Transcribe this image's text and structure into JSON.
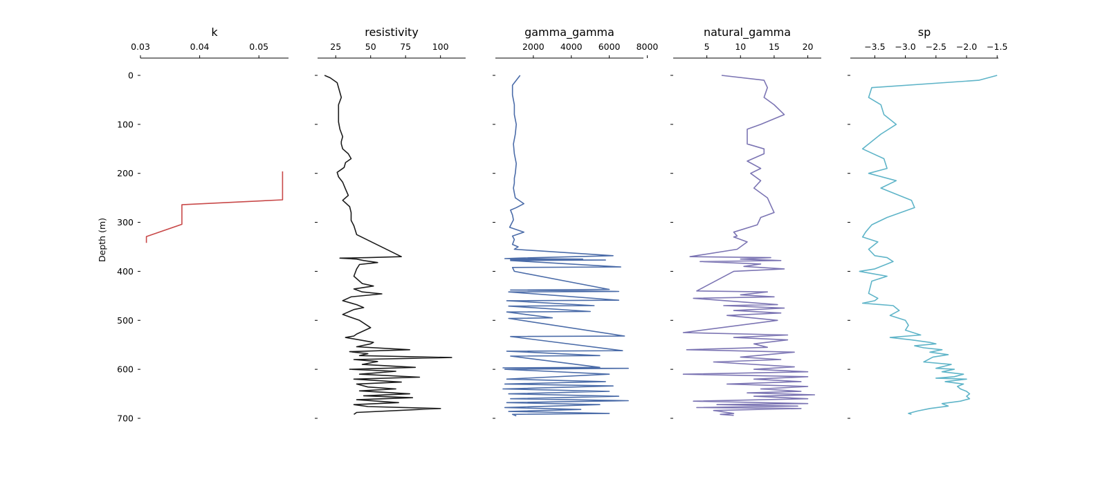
{
  "figure": {
    "depth_label": "Depth (m)",
    "depth_ticks": [
      "0",
      "100",
      "200",
      "300",
      "400",
      "500",
      "600",
      "700"
    ]
  },
  "chart_data": [
    {
      "type": "line",
      "title": "k",
      "color": "#c84848",
      "xlim": [
        0.03,
        0.055
      ],
      "xticks": [
        0.03,
        0.04,
        0.05
      ],
      "xtick_labels": [
        "0.03",
        "0.04",
        "0.05"
      ],
      "ylim": [
        0,
        700
      ],
      "y_inverted": true,
      "x": [
        0.054,
        0.054,
        0.037,
        0.037,
        0.031,
        0.031
      ],
      "depth": [
        196,
        254,
        264,
        304,
        329,
        342
      ]
    },
    {
      "type": "line",
      "title": "resistivity",
      "color": "#1a1a1a",
      "xlim": [
        12,
        118
      ],
      "xticks": [
        25,
        50,
        75,
        100
      ],
      "xtick_labels": [
        "25",
        "50",
        "75",
        "100"
      ],
      "ylim": [
        0,
        700
      ],
      "y_inverted": true,
      "x": [
        17,
        21,
        26,
        27,
        29,
        27,
        27,
        27,
        28,
        30,
        29,
        29,
        30,
        34,
        36,
        32,
        31,
        26,
        27,
        30,
        32,
        34,
        30,
        35,
        36,
        36,
        38,
        40,
        72,
        48,
        28,
        40,
        45,
        55,
        42,
        40,
        38,
        44,
        52,
        38,
        44,
        58,
        36,
        30,
        40,
        45,
        38,
        30,
        42,
        50,
        40,
        38,
        32,
        42,
        52,
        50,
        40,
        78,
        35,
        48,
        42,
        108,
        38,
        55,
        44,
        82,
        35,
        68,
        42,
        85,
        38,
        72,
        40,
        48,
        68,
        42,
        78,
        45,
        80,
        40,
        70,
        38,
        48,
        100,
        40,
        38
      ],
      "depth": [
        0,
        5,
        15,
        25,
        45,
        60,
        80,
        95,
        110,
        125,
        135,
        140,
        150,
        160,
        170,
        178,
        188,
        198,
        207,
        218,
        232,
        245,
        255,
        268,
        280,
        296,
        307,
        325,
        370,
        372,
        373,
        375,
        378,
        382,
        386,
        395,
        410,
        425,
        430,
        436,
        442,
        446,
        452,
        460,
        468,
        474,
        478,
        488,
        500,
        515,
        528,
        532,
        535,
        540,
        545,
        548,
        554,
        560,
        564,
        568,
        572,
        576,
        580,
        584,
        590,
        596,
        600,
        604,
        610,
        616,
        620,
        626,
        630,
        636,
        640,
        644,
        650,
        654,
        658,
        662,
        668,
        672,
        676,
        680,
        688,
        692
      ]
    },
    {
      "type": "line",
      "title": "gamma_gamma",
      "color": "#4a6ba8",
      "xlim": [
        0,
        7800
      ],
      "xticks": [
        2000,
        4000,
        6000,
        8000
      ],
      "xtick_labels": [
        "2000",
        "4000",
        "6000",
        "8000"
      ],
      "ylim": [
        0,
        700
      ],
      "y_inverted": true,
      "x": [
        1300,
        900,
        900,
        1000,
        1000,
        1100,
        1050,
        950,
        1000,
        1100,
        1050,
        1000,
        1000,
        950,
        1000,
        1050,
        1500,
        1100,
        800,
        900,
        950,
        750,
        1500,
        900,
        1000,
        950,
        900,
        1200,
        1000,
        6200,
        1200,
        500,
        4600,
        800,
        5800,
        800,
        6600,
        900,
        1000,
        6000,
        800,
        6500,
        700,
        6500,
        600,
        5200,
        700,
        5000,
        600,
        3000,
        700,
        6800,
        800,
        6700,
        600,
        5500,
        800,
        5500,
        400,
        7000,
        500,
        6000,
        600,
        5800,
        500,
        6200,
        400,
        6000,
        700,
        6500,
        800,
        7000,
        600,
        5500,
        500,
        4500,
        700,
        6000,
        900,
        1100
      ],
      "depth": [
        0,
        20,
        40,
        60,
        80,
        100,
        120,
        140,
        160,
        180,
        200,
        210,
        220,
        230,
        240,
        250,
        262,
        270,
        275,
        285,
        295,
        310,
        320,
        328,
        335,
        340,
        345,
        350,
        355,
        368,
        373,
        374,
        375,
        376,
        377,
        378,
        391,
        392,
        400,
        437,
        438,
        441,
        442,
        459,
        460,
        470,
        471,
        482,
        483,
        495,
        496,
        532,
        533,
        562,
        563,
        572,
        573,
        596,
        597,
        598,
        600,
        610,
        620,
        625,
        630,
        634,
        640,
        645,
        650,
        655,
        660,
        664,
        668,
        672,
        678,
        682,
        686,
        690,
        692,
        695
      ]
    },
    {
      "type": "line",
      "title": "natural_gamma",
      "color": "#7b74b3",
      "xlim": [
        0,
        22
      ],
      "xticks": [
        5,
        10,
        15,
        20
      ],
      "xtick_labels": [
        "5",
        "10",
        "15",
        "20"
      ],
      "ylim": [
        0,
        700
      ],
      "y_inverted": true,
      "x": [
        7.2,
        13.5,
        14,
        13.5,
        15,
        16.5,
        13,
        11,
        11,
        13.5,
        13.5,
        11,
        13,
        11.5,
        13,
        12,
        14,
        14.5,
        15,
        13,
        12.5,
        9,
        9.5,
        9,
        11,
        9.5,
        2.5,
        14.5,
        10,
        16,
        4,
        13,
        10.5,
        16.5,
        9,
        3.5,
        14,
        10,
        15,
        3,
        15.5,
        7.5,
        16.5,
        9,
        16,
        8,
        15.5,
        1.5,
        17,
        9,
        17,
        12,
        14,
        2,
        18,
        10,
        16,
        6,
        18,
        12,
        20,
        1.5,
        20,
        12,
        19,
        8,
        20,
        13,
        19,
        11,
        21,
        12,
        20,
        3,
        20,
        6.5,
        18.5,
        3.5,
        19,
        6,
        9,
        7,
        9
      ],
      "depth": [
        0,
        10,
        25,
        45,
        60,
        80,
        100,
        110,
        140,
        150,
        160,
        175,
        190,
        200,
        215,
        230,
        250,
        265,
        280,
        290,
        305,
        320,
        328,
        330,
        340,
        355,
        370,
        372,
        375,
        378,
        380,
        385,
        390,
        395,
        400,
        440,
        442,
        448,
        452,
        455,
        468,
        470,
        475,
        480,
        485,
        490,
        500,
        525,
        530,
        535,
        540,
        548,
        555,
        560,
        565,
        575,
        580,
        585,
        595,
        600,
        605,
        610,
        615,
        620,
        625,
        630,
        635,
        640,
        645,
        648,
        652,
        655,
        660,
        665,
        670,
        672,
        675,
        678,
        680,
        684,
        690,
        692,
        694
      ]
    },
    {
      "type": "line",
      "title": "sp",
      "color": "#5eb4c8",
      "xlim": [
        -3.9,
        -1.48
      ],
      "xticks": [
        -3.5,
        -3.0,
        -2.5,
        -2.0,
        -1.5
      ],
      "xtick_labels": [
        "−3.5",
        "−3.0",
        "−2.5",
        "−2.0",
        "−1.5"
      ],
      "ylim": [
        0,
        700
      ],
      "y_inverted": true,
      "x": [
        -1.5,
        -1.8,
        -3.55,
        -3.6,
        -3.4,
        -3.35,
        -3.15,
        -3.4,
        -3.7,
        -3.35,
        -3.3,
        -3.6,
        -3.15,
        -3.4,
        -2.9,
        -2.85,
        -3.3,
        -3.55,
        -3.65,
        -3.7,
        -3.45,
        -3.6,
        -3.5,
        -3.3,
        -3.2,
        -3.5,
        -3.75,
        -3.3,
        -3.55,
        -3.6,
        -3.45,
        -3.5,
        -3.7,
        -3.2,
        -3.1,
        -3.25,
        -3.0,
        -2.95,
        -3.0,
        -2.75,
        -3.25,
        -2.9,
        -2.6,
        -2.5,
        -2.85,
        -2.7,
        -2.4,
        -2.6,
        -2.3,
        -2.55,
        -2.7,
        -2.25,
        -2.5,
        -2.2,
        -2.4,
        -2.05,
        -2.2,
        -2.5,
        -2.0,
        -2.35,
        -2.05,
        -2.15,
        -2.1,
        -2.0,
        -1.95,
        -2.0,
        -1.95,
        -2.1,
        -2.4,
        -2.3,
        -2.6,
        -2.8,
        -2.95,
        -2.9
      ],
      "depth": [
        0,
        10,
        25,
        45,
        60,
        80,
        100,
        120,
        150,
        170,
        190,
        200,
        215,
        230,
        255,
        270,
        290,
        305,
        320,
        330,
        340,
        355,
        368,
        372,
        380,
        395,
        400,
        410,
        420,
        445,
        455,
        460,
        465,
        470,
        480,
        490,
        500,
        510,
        520,
        530,
        535,
        540,
        545,
        548,
        552,
        556,
        560,
        565,
        570,
        575,
        585,
        590,
        598,
        600,
        605,
        610,
        615,
        618,
        620,
        625,
        630,
        635,
        640,
        645,
        650,
        655,
        660,
        665,
        670,
        675,
        680,
        685,
        690,
        692
      ]
    }
  ]
}
